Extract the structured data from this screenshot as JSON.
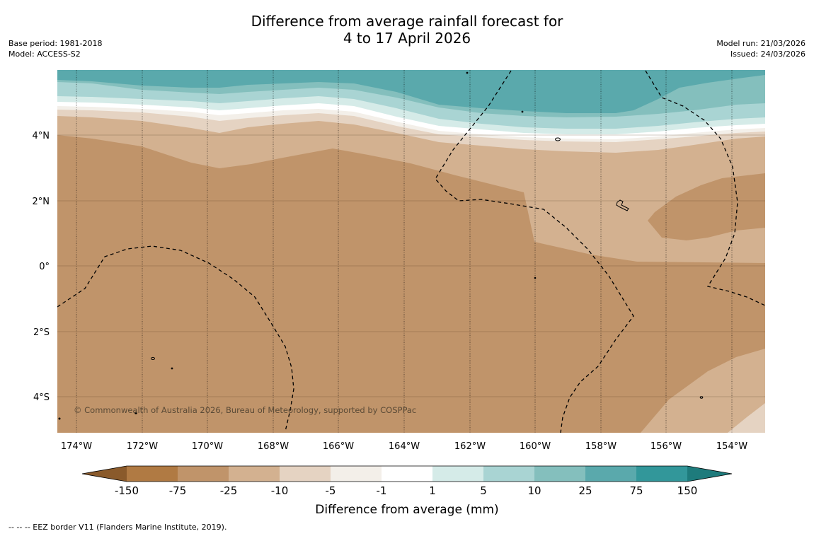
{
  "title": {
    "line1": "Difference from average rainfall forecast for",
    "line2": "4 to 17 April 2026"
  },
  "meta": {
    "base_period": "Base period: 1981-2018",
    "model": "Model: ACCESS-S2",
    "model_run": "Model run: 21/03/2026",
    "issued": "Issued: 24/03/2026"
  },
  "map": {
    "longitude_labels": [
      "174°W",
      "172°W",
      "170°W",
      "168°W",
      "166°W",
      "164°W",
      "162°W",
      "160°W",
      "158°W",
      "156°W",
      "154°W"
    ],
    "latitude_labels": [
      "4°N",
      "2°N",
      "0°",
      "2°S",
      "4°S"
    ],
    "copyright": "© Commonwealth of Australia 2026, Bureau of Meteorology, supported by COSPPac"
  },
  "colorbar": {
    "ticks": [
      "-150",
      "-75",
      "-25",
      "-10",
      "-5",
      "-1",
      "1",
      "5",
      "10",
      "25",
      "75",
      "150"
    ],
    "label": "Difference from average (mm)",
    "colors": {
      "below_min": "#8a5a2b",
      "n150_n75": "#b07a43",
      "n75_n25": "#c0946a",
      "n25_n10": "#d3b190",
      "n10_n5": "#e5d3c2",
      "n5_n1": "#f3efe9",
      "n1_1": "#ffffff",
      "p1_5": "#d5ebe8",
      "p5_10": "#a9d4d3",
      "p10_25": "#84bfbd",
      "p25_75": "#5aa9ac",
      "p75_150": "#32979a",
      "above_max": "#1e7b7c"
    }
  },
  "legend": {
    "eez": "--  --  -- EEZ border V11 (Flanders Marine Institute, 2019)."
  }
}
